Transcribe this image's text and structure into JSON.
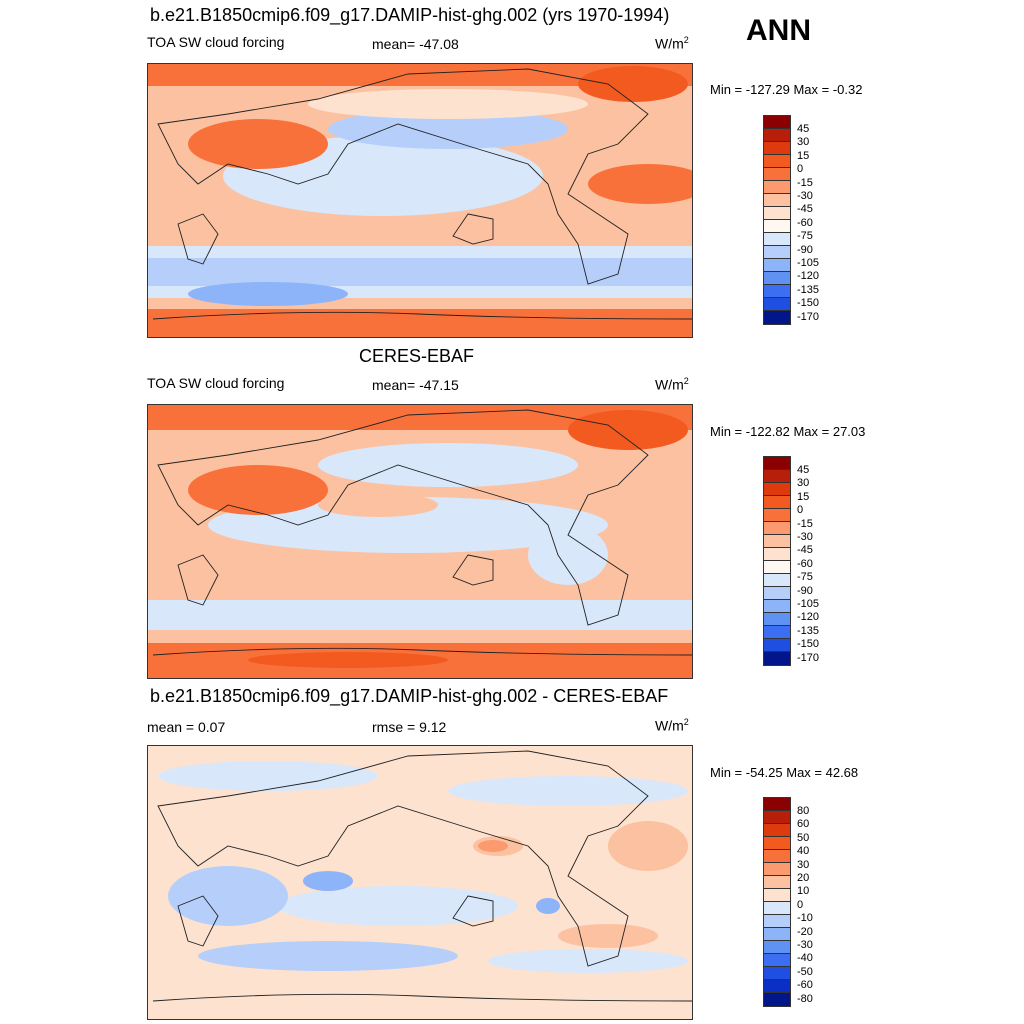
{
  "season": "ANN",
  "units_base": "W/m",
  "units_sup": "2",
  "colors": {
    "pos_scale": [
      "#8b0000",
      "#b81f0b",
      "#dd3a0d",
      "#f35a1f",
      "#f9713a",
      "#fb9a6f",
      "#fcc1a0",
      "#fde2cf",
      "#fff8f2",
      "#d9e7fb",
      "#b6cffa",
      "#8db3f8",
      "#6092f3",
      "#3b6ef0",
      "#1f4fe0",
      "#0a2fc4",
      "#00168a"
    ]
  },
  "panels": [
    {
      "title": "b.e21.B1850cmip6.f09_g17.DAMIP-hist-ghg.002 (yrs 1970-1994)",
      "left_label": "TOA SW cloud forcing",
      "center_label": "mean= -47.08",
      "minmax": "Min = -127.29 Max =  -0.32",
      "levels": [
        "45",
        "30",
        "15",
        "0",
        "-15",
        "-30",
        "-45",
        "-60",
        "-75",
        "-90",
        "-105",
        "-120",
        "-135",
        "-150",
        "-170"
      ]
    },
    {
      "title": "CERES-EBAF",
      "left_label": "TOA SW cloud forcing",
      "center_label": "mean= -47.15",
      "minmax": "Min = -122.82 Max =  27.03",
      "levels": [
        "45",
        "30",
        "15",
        "0",
        "-15",
        "-30",
        "-45",
        "-60",
        "-75",
        "-90",
        "-105",
        "-120",
        "-135",
        "-150",
        "-170"
      ]
    },
    {
      "title": "b.e21.B1850cmip6.f09_g17.DAMIP-hist-ghg.002 - CERES-EBAF",
      "left_label": "mean =   0.07",
      "center_label": "rmse =   9.12",
      "minmax": "Min = -54.25 Max =  42.68",
      "levels": [
        "80",
        "60",
        "50",
        "40",
        "30",
        "20",
        "10",
        "0",
        "-10",
        "-20",
        "-30",
        "-40",
        "-50",
        "-60",
        "-80"
      ]
    }
  ]
}
